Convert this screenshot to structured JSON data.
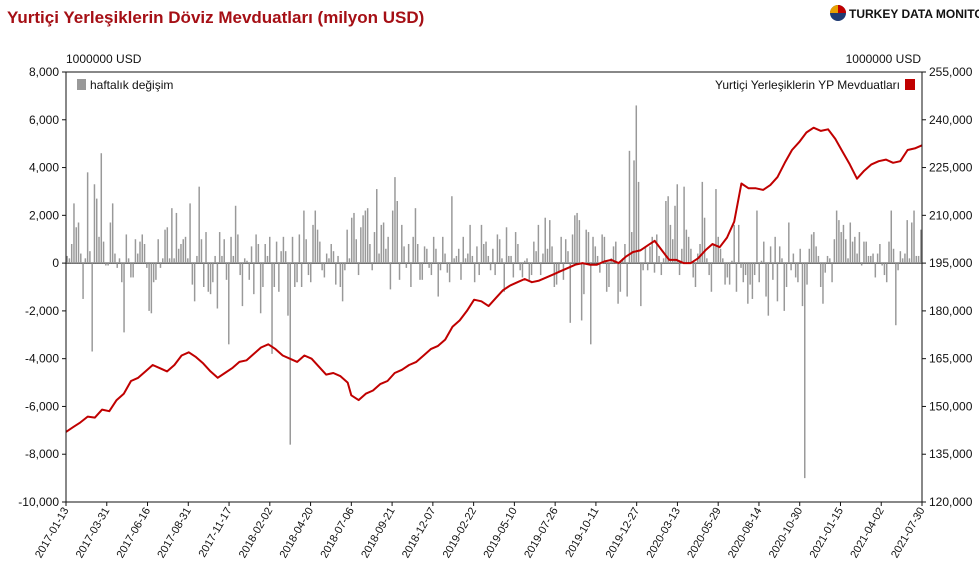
{
  "chart_data": {
    "type": "bar+line",
    "title": "Yurtiçi Yerleşiklerin Döviz Mevduatları (milyon USD)",
    "brand": "TURKEY DATA MONITOR",
    "left_unit": "1000000 USD",
    "right_unit": "1000000 USD",
    "left_axis": {
      "min": -10000,
      "max": 8000,
      "ticks": [
        8000,
        6000,
        4000,
        2000,
        0,
        -2000,
        -4000,
        -6000,
        -8000,
        -10000
      ],
      "tick_labels": [
        "8,000",
        "6,000",
        "4,000",
        "2,000",
        "0",
        "-2,000",
        "-4,000",
        "-6,000",
        "-8,000",
        "-10,000"
      ]
    },
    "right_axis": {
      "min": 120000,
      "max": 255000,
      "ticks": [
        255000,
        240000,
        225000,
        210000,
        195000,
        180000,
        165000,
        150000,
        135000,
        120000
      ],
      "tick_labels": [
        "255,000",
        "240,000",
        "225,000",
        "210,000",
        "195,000",
        "180,000",
        "165,000",
        "150,000",
        "135,000",
        "120,000"
      ]
    },
    "x_tick_labels": [
      "2017-01-13",
      "2017-03-31",
      "2017-06-16",
      "2017-08-31",
      "2017-11-17",
      "2018-02-02",
      "2018-04-20",
      "2018-07-06",
      "2018-09-21",
      "2018-12-07",
      "2019-02-22",
      "2019-05-10",
      "2019-07-26",
      "2019-10-11",
      "2019-12-27",
      "2020-03-13",
      "2020-05-29",
      "2020-08-14",
      "2020-10-30",
      "2021-01-15",
      "2021-04-02",
      "2021-07-30"
    ],
    "legend": {
      "bar_label": "haftalık değişim",
      "line_label": "Yurtiçi Yerleşiklerin YP Mevduatları"
    },
    "colors": {
      "bar": "#999999",
      "line": "#c00000",
      "title": "#a50f15"
    },
    "series": [
      {
        "name": "haftalık değişim",
        "axis": "left",
        "values": [
          300,
          200,
          800,
          2500,
          1500,
          1700,
          400,
          -1500,
          200,
          3800,
          500,
          -3700,
          3300,
          2700,
          1100,
          4600,
          900,
          -100,
          -100,
          1700,
          2500,
          400,
          -200,
          200,
          -800,
          -2900,
          1200,
          200,
          -600,
          -600,
          1000,
          400,
          900,
          1200,
          800,
          -200,
          -2000,
          -2100,
          -800,
          -700,
          1000,
          -200,
          200,
          1400,
          1500,
          200,
          2300,
          200,
          2100,
          600,
          800,
          1000,
          1100,
          200,
          2500,
          -900,
          -1600,
          300,
          3200,
          1000,
          -1000,
          1300,
          -1200,
          -1300,
          -800,
          300,
          -1900,
          1300,
          300,
          1000,
          -700,
          -3400,
          1100,
          300,
          2400,
          1200,
          -500,
          -1800,
          200,
          100,
          -700,
          700,
          -1300,
          1200,
          800,
          -2100,
          -1000,
          800,
          300,
          1100,
          -3800,
          -1000,
          900,
          -1200,
          500,
          1100,
          500,
          -2200,
          -7600,
          1100,
          -1000,
          -800,
          1200,
          -1000,
          2200,
          1000,
          -500,
          -800,
          1600,
          2200,
          1400,
          900,
          -300,
          -600,
          400,
          200,
          800,
          500,
          -900,
          300,
          -1000,
          -1600,
          -300,
          1400,
          200,
          1900,
          2100,
          1000,
          -500,
          1500,
          2000,
          2200,
          2300,
          800,
          -300,
          1300,
          3100,
          400,
          1600,
          1700,
          600,
          1100,
          -1100,
          2200,
          3600,
          2600,
          -700,
          1600,
          700,
          -200,
          800,
          -1000,
          1100,
          2300,
          800,
          -700,
          -700,
          700,
          600,
          -200,
          -500,
          1100,
          600,
          -1400,
          -300,
          1100,
          400,
          -400,
          -800,
          2800,
          200,
          300,
          600,
          -700,
          1100,
          200,
          400,
          1600,
          300,
          -800,
          700,
          -500,
          1600,
          800,
          900,
          300,
          -300,
          600,
          -500,
          1200,
          1000,
          200,
          -1200,
          1500,
          300,
          300,
          -600,
          1300,
          800,
          -300,
          -600,
          100,
          200,
          -700,
          -500,
          900,
          500,
          1600,
          -500,
          400,
          1900,
          600,
          1800,
          700,
          -1000,
          -900,
          -400,
          1100,
          -700,
          1000,
          500,
          -2500,
          1200,
          2000,
          2100,
          1800,
          -2400,
          -1300,
          1400,
          1300,
          -3400,
          1100,
          700,
          300,
          -400,
          1200,
          1100,
          -1200,
          -1000,
          200,
          700,
          900,
          -1700,
          -1200,
          200,
          800,
          -1400,
          4700,
          1300,
          4300,
          6600,
          3400,
          -1800,
          -300,
          700,
          -300,
          700,
          1100,
          -400,
          1200,
          300,
          -500,
          200,
          2600,
          2800,
          1600,
          1000,
          2400,
          3300,
          -500,
          600,
          3200,
          1400,
          1100,
          600,
          -600,
          -1000,
          400,
          800,
          3400,
          1900,
          200,
          -500,
          -1200,
          800,
          3100,
          1100,
          600,
          200,
          -900,
          -600,
          -900,
          100,
          1600,
          -1200,
          1600,
          -200,
          -800,
          -500,
          -1700,
          -900,
          -1500,
          -500,
          2200,
          -800,
          100,
          900,
          -1400,
          -2200,
          700,
          -700,
          1100,
          -1600,
          700,
          200,
          -2000,
          -1000,
          1700,
          -300,
          400,
          -600,
          -800,
          600,
          -1800,
          -9000,
          -900,
          600,
          1200,
          1300,
          700,
          300,
          -1000,
          -1700,
          -400,
          300,
          200,
          -800,
          1000,
          2200,
          1800,
          1300,
          1600,
          1000,
          200,
          1700,
          900,
          1100,
          400,
          1300,
          -100,
          900,
          900,
          300,
          300,
          400,
          -600,
          400,
          800,
          -100,
          -500,
          -800,
          900,
          2200,
          600,
          -2600,
          -300,
          500,
          200,
          400,
          1800,
          200,
          1700,
          2200,
          300,
          300,
          1400
        ]
      },
      {
        "name": "Yurtiçi Yerleşiklerin YP Mevduatları",
        "axis": "right",
        "points": [
          [
            "2017-01-13",
            142000
          ],
          [
            "2017-01-27",
            143500
          ],
          [
            "2017-02-10",
            145000
          ],
          [
            "2017-02-24",
            146800
          ],
          [
            "2017-03-10",
            146500
          ],
          [
            "2017-03-24",
            149000
          ],
          [
            "2017-04-07",
            148500
          ],
          [
            "2017-04-21",
            152000
          ],
          [
            "2017-05-05",
            154000
          ],
          [
            "2017-05-19",
            158000
          ],
          [
            "2017-06-02",
            159000
          ],
          [
            "2017-06-16",
            161000
          ],
          [
            "2017-06-30",
            163000
          ],
          [
            "2017-07-14",
            162000
          ],
          [
            "2017-07-28",
            161000
          ],
          [
            "2017-08-11",
            163000
          ],
          [
            "2017-08-25",
            166000
          ],
          [
            "2017-09-08",
            167000
          ],
          [
            "2017-09-22",
            165500
          ],
          [
            "2017-10-06",
            163500
          ],
          [
            "2017-10-20",
            161000
          ],
          [
            "2017-11-03",
            159000
          ],
          [
            "2017-11-17",
            160500
          ],
          [
            "2017-12-01",
            162000
          ],
          [
            "2017-12-15",
            164000
          ],
          [
            "2017-12-29",
            164500
          ],
          [
            "2018-01-12",
            166500
          ],
          [
            "2018-01-26",
            168500
          ],
          [
            "2018-02-09",
            169500
          ],
          [
            "2018-02-23",
            168000
          ],
          [
            "2018-03-09",
            166000
          ],
          [
            "2018-03-23",
            165000
          ],
          [
            "2018-04-06",
            164000
          ],
          [
            "2018-04-20",
            166000
          ],
          [
            "2018-05-04",
            165000
          ],
          [
            "2018-05-18",
            162500
          ],
          [
            "2018-06-01",
            160000
          ],
          [
            "2018-06-15",
            160500
          ],
          [
            "2018-06-29",
            159500
          ],
          [
            "2018-07-13",
            157500
          ],
          [
            "2018-07-20",
            153500
          ],
          [
            "2018-08-03",
            152000
          ],
          [
            "2018-08-17",
            154000
          ],
          [
            "2018-08-31",
            155000
          ],
          [
            "2018-09-14",
            157000
          ],
          [
            "2018-09-28",
            158000
          ],
          [
            "2018-10-12",
            160500
          ],
          [
            "2018-10-26",
            161500
          ],
          [
            "2018-11-09",
            163000
          ],
          [
            "2018-11-23",
            164000
          ],
          [
            "2018-12-07",
            166000
          ],
          [
            "2018-12-21",
            168000
          ],
          [
            "2019-01-04",
            169000
          ],
          [
            "2019-01-18",
            171000
          ],
          [
            "2019-02-01",
            175000
          ],
          [
            "2019-02-15",
            177000
          ],
          [
            "2019-03-01",
            180000
          ],
          [
            "2019-03-15",
            183500
          ],
          [
            "2019-03-29",
            183000
          ],
          [
            "2019-04-12",
            181500
          ],
          [
            "2019-04-26",
            184000
          ],
          [
            "2019-05-10",
            186500
          ],
          [
            "2019-05-24",
            188000
          ],
          [
            "2019-06-07",
            189000
          ],
          [
            "2019-06-21",
            190000
          ],
          [
            "2019-07-05",
            189000
          ],
          [
            "2019-07-19",
            189500
          ],
          [
            "2019-08-02",
            190500
          ],
          [
            "2019-08-16",
            191500
          ],
          [
            "2019-08-30",
            192500
          ],
          [
            "2019-09-13",
            193500
          ],
          [
            "2019-09-27",
            194500
          ],
          [
            "2019-10-11",
            195000
          ],
          [
            "2019-10-25",
            194500
          ],
          [
            "2019-11-08",
            194500
          ],
          [
            "2019-11-22",
            195500
          ],
          [
            "2019-12-06",
            196000
          ],
          [
            "2019-12-20",
            195000
          ],
          [
            "2020-01-03",
            197000
          ],
          [
            "2020-01-17",
            198500
          ],
          [
            "2020-01-31",
            199000
          ],
          [
            "2020-02-14",
            200500
          ],
          [
            "2020-02-28",
            202000
          ],
          [
            "2020-03-13",
            199000
          ],
          [
            "2020-03-27",
            196000
          ],
          [
            "2020-04-10",
            196000
          ],
          [
            "2020-04-24",
            195000
          ],
          [
            "2020-05-08",
            195000
          ],
          [
            "2020-05-22",
            196500
          ],
          [
            "2020-06-05",
            199000
          ],
          [
            "2020-06-19",
            201000
          ],
          [
            "2020-07-03",
            200000
          ],
          [
            "2020-07-17",
            203000
          ],
          [
            "2020-07-31",
            208000
          ],
          [
            "2020-08-14",
            220000
          ],
          [
            "2020-08-28",
            218500
          ],
          [
            "2020-09-11",
            218500
          ],
          [
            "2020-09-25",
            218000
          ],
          [
            "2020-10-09",
            219500
          ],
          [
            "2020-10-23",
            222000
          ],
          [
            "2020-11-06",
            226500
          ],
          [
            "2020-11-20",
            230500
          ],
          [
            "2020-12-04",
            233000
          ],
          [
            "2020-12-18",
            236000
          ],
          [
            "2021-01-01",
            237500
          ],
          [
            "2021-01-15",
            236500
          ],
          [
            "2021-01-29",
            237000
          ],
          [
            "2021-02-12",
            234000
          ],
          [
            "2021-02-26",
            230000
          ],
          [
            "2021-03-12",
            226000
          ],
          [
            "2021-03-26",
            221500
          ],
          [
            "2021-04-09",
            224000
          ],
          [
            "2021-04-23",
            226000
          ],
          [
            "2021-05-07",
            227000
          ],
          [
            "2021-05-21",
            227500
          ],
          [
            "2021-06-04",
            226500
          ],
          [
            "2021-06-18",
            227000
          ],
          [
            "2021-07-02",
            230500
          ],
          [
            "2021-07-16",
            231000
          ],
          [
            "2021-07-30",
            232000
          ]
        ]
      }
    ]
  }
}
